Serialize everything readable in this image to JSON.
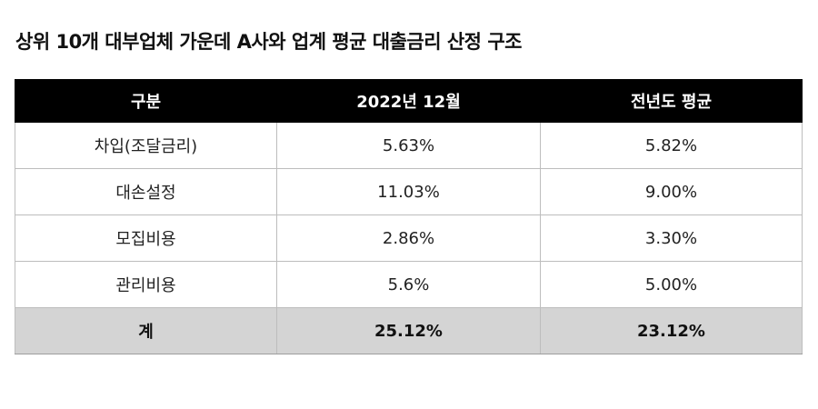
{
  "title": "상위 10개 대부업체 가운데 A사와 업계 평균 대출금리 산정 구조",
  "table": {
    "headers": [
      "구분",
      "2022년 12월",
      "전년도 평균"
    ],
    "rows": [
      [
        "차입(조달금리)",
        "5.63%",
        "5.82%"
      ],
      [
        "대손설정",
        "11.03%",
        "9.00%"
      ],
      [
        "모집비용",
        "2.86%",
        "3.30%"
      ],
      [
        "관리비용",
        "5.6%",
        "5.00%"
      ]
    ],
    "total": [
      "계",
      "25.12%",
      "23.12%"
    ]
  },
  "colors": {
    "header_bg": "#000000",
    "header_text": "#ffffff",
    "total_row_bg": "#d4d4d4",
    "border": "#bdbdbd"
  }
}
